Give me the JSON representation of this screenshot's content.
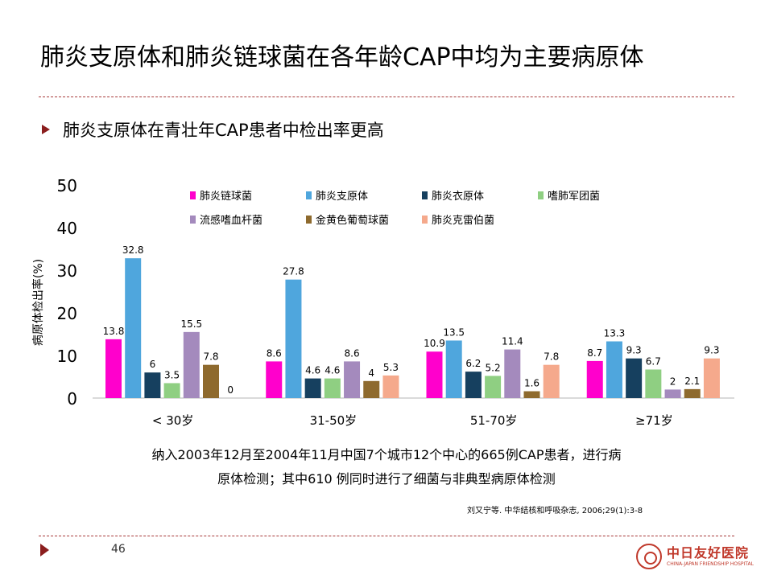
{
  "slide": {
    "title": "肺炎支原体和肺炎链球菌在各年龄CAP中均为主要病原体",
    "bullet": "肺炎支原体在青壮年CAP患者中检出率更高",
    "caption_line1": "纳入2003年12月至2004年11月中国7个城市12个中心的665例CAP患者，进行病",
    "caption_line2": "原体检测；其中610 例同时进行了细菌与非典型病原体检测",
    "citation": "刘又宁等. 中华结核和呼吸杂志, 2006;29(1):3-8",
    "page_number": "46",
    "logo_cn": "中日友好医院",
    "logo_en": "CHINA-JAPAN FRIENDSHIP HOSPITAL"
  },
  "chart_data": {
    "type": "bar",
    "title": "",
    "xlabel": "",
    "ylabel": "病原体检出率(%)",
    "ylim": [
      0,
      50
    ],
    "yticks": [
      0,
      10,
      20,
      30,
      40,
      50
    ],
    "grid": false,
    "legend_position": "top",
    "categories": [
      "< 30岁",
      "31-50岁",
      "51-70岁",
      "≥71岁"
    ],
    "series": [
      {
        "name": "肺炎链球菌",
        "color": "#ff00cc",
        "values": [
          13.8,
          8.6,
          10.9,
          8.7
        ],
        "labels": [
          "13.8",
          "8.6",
          "10.9",
          "8.7"
        ]
      },
      {
        "name": "肺炎支原体",
        "color": "#4fa6dd",
        "values": [
          32.8,
          27.8,
          13.5,
          13.3
        ],
        "labels": [
          "32.8",
          "27.8",
          "13.5",
          "13.3"
        ]
      },
      {
        "name": "肺炎衣原体",
        "color": "#16405f",
        "values": [
          6,
          4.6,
          6.2,
          9.3
        ],
        "labels": [
          "6",
          "4.6",
          "6.2",
          "9.3"
        ]
      },
      {
        "name": "嗜肺军团菌",
        "color": "#8fcf82",
        "values": [
          3.5,
          4.6,
          5.2,
          6.7
        ],
        "labels": [
          "3.5",
          "4.6",
          "5.2",
          "6.7"
        ]
      },
      {
        "name": "流感嗜血杆菌",
        "color": "#a48abd",
        "values": [
          15.5,
          8.6,
          11.4,
          2
        ],
        "labels": [
          "15.5",
          "8.6",
          "11.4",
          "2"
        ]
      },
      {
        "name": "金黄色葡萄球菌",
        "color": "#8e6a2e",
        "values": [
          7.8,
          4,
          1.6,
          2.1
        ],
        "labels": [
          "7.8",
          "4",
          "1.6",
          "2.1"
        ]
      },
      {
        "name": "肺炎克雷伯菌",
        "color": "#f5a98c",
        "values": [
          0,
          5.3,
          7.8,
          9.3
        ],
        "labels": [
          "0",
          "5.3",
          "7.8",
          "9.3"
        ]
      }
    ]
  }
}
